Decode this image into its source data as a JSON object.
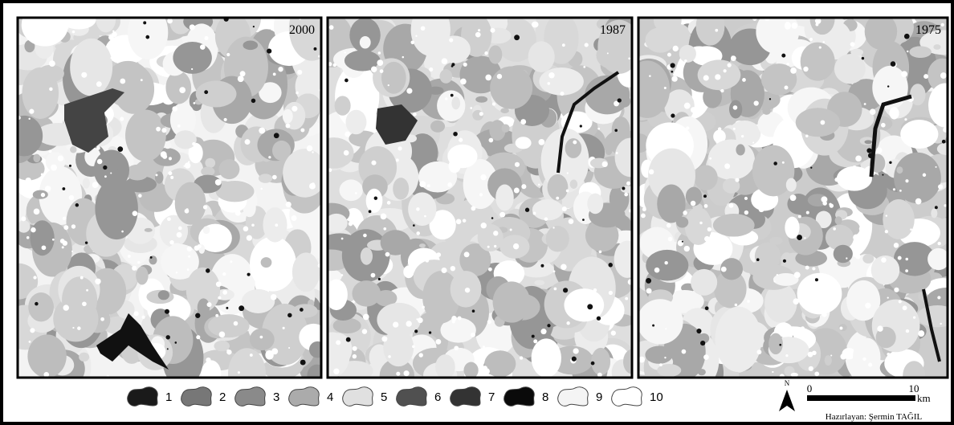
{
  "panels": [
    {
      "label": "2000"
    },
    {
      "label": "1987"
    },
    {
      "label": "1975"
    }
  ],
  "legend": [
    "1",
    "2",
    "3",
    "4",
    "5",
    "6",
    "7",
    "8",
    "9",
    "10"
  ],
  "north": "N",
  "scale": {
    "start": "0",
    "end": "10",
    "unit": "km"
  },
  "credit": "Hazırlayan: Şermin TAĞIL"
}
